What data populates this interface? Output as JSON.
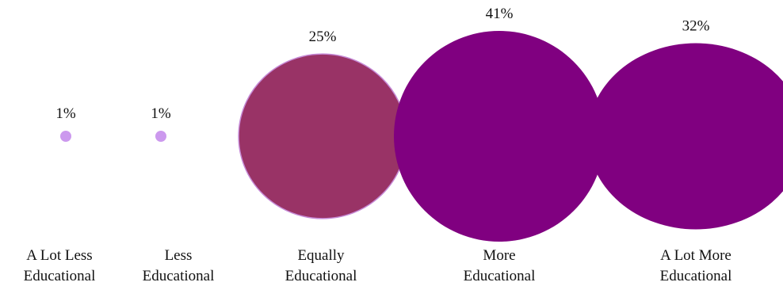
{
  "chart_data": {
    "type": "bubble",
    "categories": [
      [
        "A Lot Less",
        "Educational"
      ],
      [
        "Less",
        "Educational"
      ],
      [
        "Equally",
        "Educational"
      ],
      [
        "More",
        "Educational"
      ],
      [
        "A Lot More",
        "Educational"
      ]
    ],
    "values": [
      1,
      1,
      25,
      41,
      32
    ],
    "value_labels": [
      "1%",
      "1%",
      "25%",
      "41%",
      "32%"
    ],
    "colors": [
      "#cc99ee",
      "#cc99ee",
      "#993366",
      "#800080",
      "#800080"
    ],
    "title": "",
    "xlabel": "",
    "ylabel": "",
    "grid": false,
    "legend": "none"
  }
}
